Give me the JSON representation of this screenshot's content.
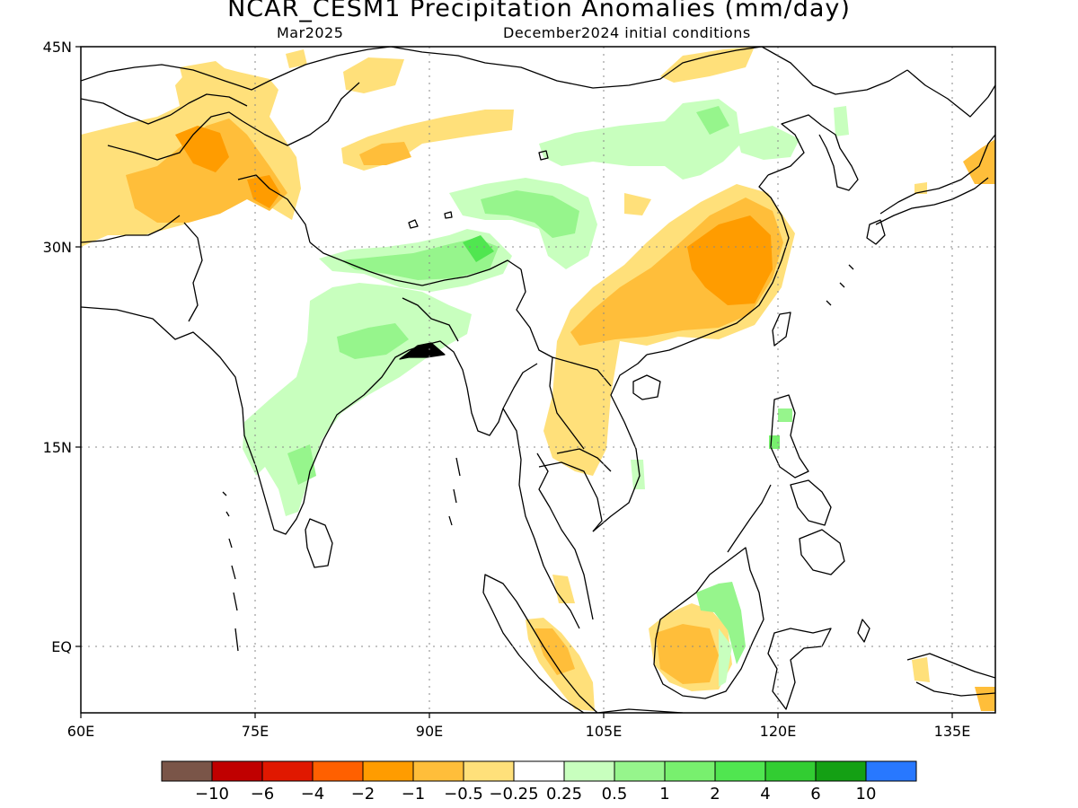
{
  "title": "NCAR_CESM1 Precipitation Anomalies (mm/day)",
  "subtitle_left": "Mar2025",
  "subtitle_right": "December2024 initial conditions",
  "axes": {
    "lat_labels": [
      "45N",
      "30N",
      "15N",
      "EQ"
    ],
    "lon_labels": [
      "60E",
      "75E",
      "90E",
      "105E",
      "120E",
      "135E"
    ]
  },
  "colorbar": {
    "colors": [
      "#7a5548",
      "#c00000",
      "#e01800",
      "#ff6000",
      "#ff9c00",
      "#ffbe3a",
      "#ffe07a",
      "#ffffff",
      "#c8ffbe",
      "#96f58c",
      "#78f06e",
      "#50e650",
      "#32cd32",
      "#14a014",
      "#2878ff"
    ],
    "labels": [
      "−10",
      "−6",
      "−4",
      "−2",
      "−1",
      "−0.5",
      "−0.25",
      "0.25",
      "0.5",
      "1",
      "2",
      "4",
      "6",
      "10"
    ]
  }
}
